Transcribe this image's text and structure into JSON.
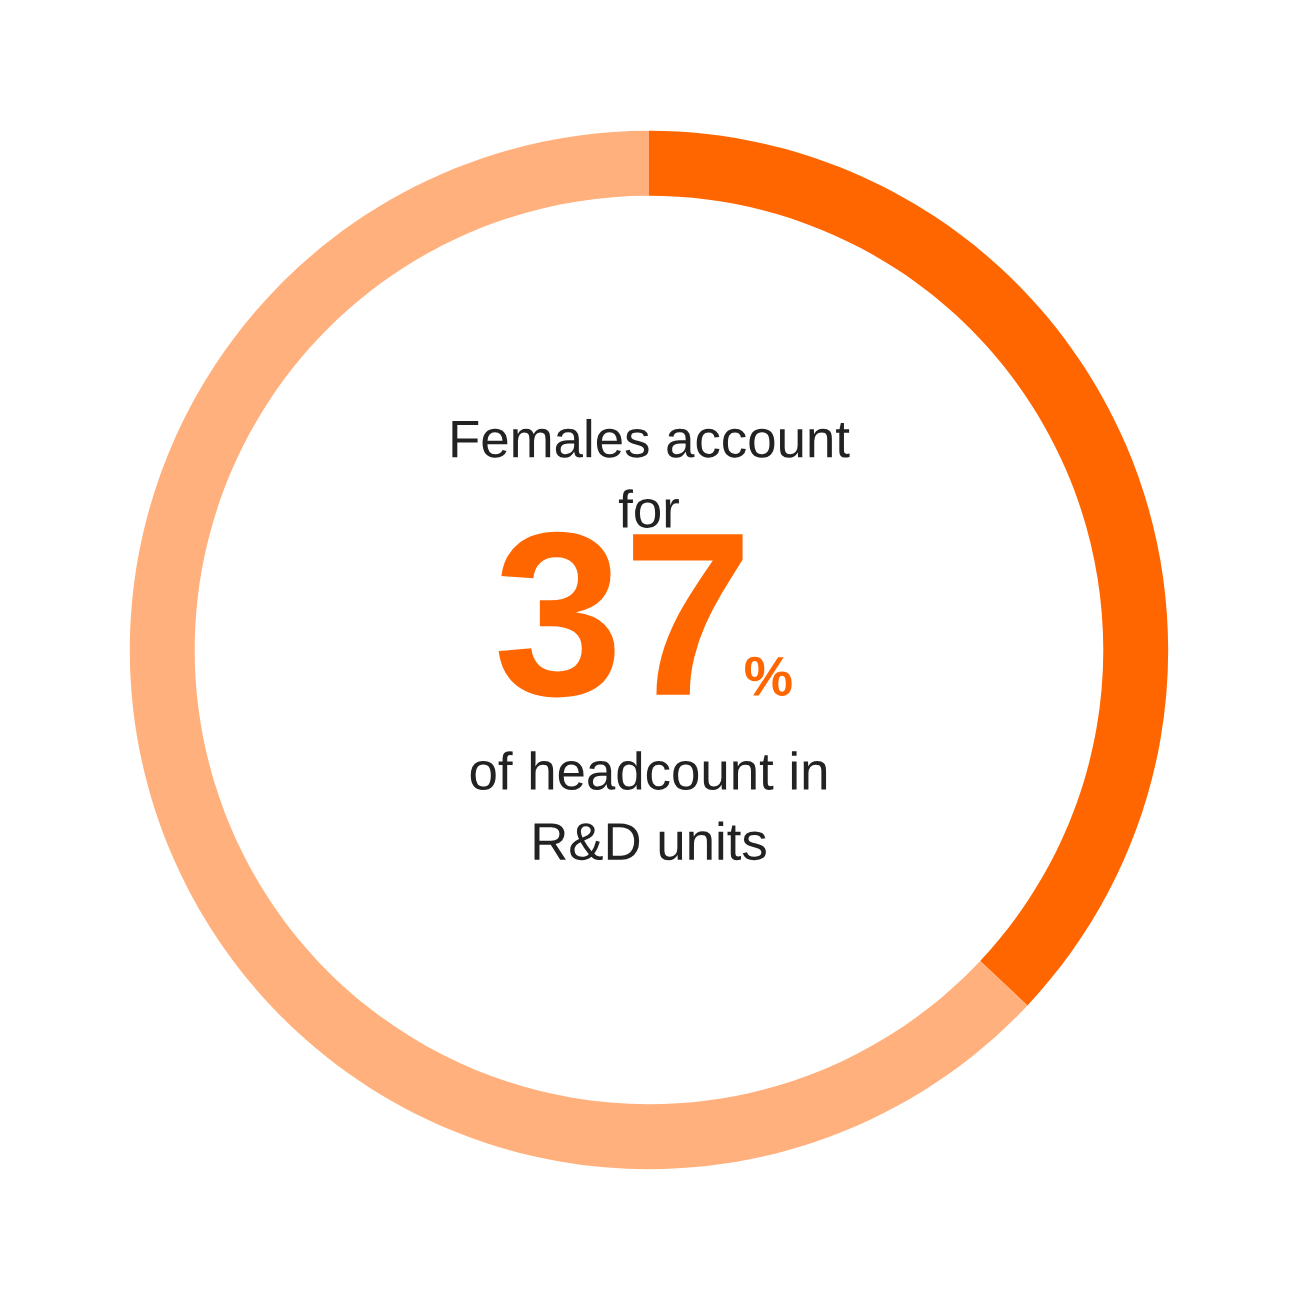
{
  "chart_data": {
    "type": "donut",
    "categories": [
      null,
      null
    ],
    "values": [
      37,
      63
    ],
    "colors": [
      "#ff6600",
      "#ffb07c"
    ],
    "annotations": [
      "Females account\nfor",
      "37",
      "%",
      "of headcount in\nR&D units"
    ]
  }
}
